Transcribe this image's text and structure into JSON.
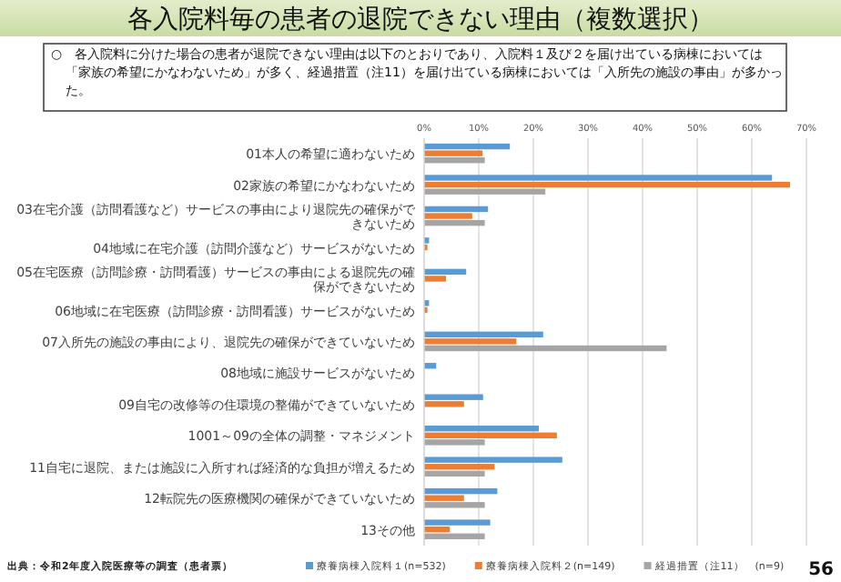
{
  "chart_data": {
    "type": "bar",
    "orientation": "horizontal",
    "title": "各入院料毎の患者の退院できない理由（複数選択）",
    "subtitle": "○　各入院料に分けた場合の患者が退院できない理由は以下のとおりであり、入院料１及び２を届け出ている病棟においては「家族の希望にかなわないため」が多く、経過措置（注11）を届け出ている病棟においては「入所先の施設の事由」が多かった。",
    "categories": [
      "01本人の希望に適わないため",
      "02家族の希望にかなわないため",
      "03在宅介護（訪問看護など）サービスの事由により退院先の確保ができないため",
      "04地域に在宅介護（訪問介護など）サービスがないため",
      "05在宅医療（訪問診療・訪問看護）サービスの事由による退院先の確保ができないため",
      "06地域に在宅医療（訪問診療・訪問看護）サービスがないため",
      "07入所先の施設の事由により、退院先の確保ができていないため",
      "08地域に施設サービスがないため",
      "09自宅の改修等の住環境の整備ができていないため",
      "1001～09の全体の調整・マネジメント",
      "11自宅に退院、または施設に入所すれば経済的な負担が増えるため",
      "12転院先の医療機関の確保ができていないため",
      "13その他"
    ],
    "series": [
      {
        "name": "療養病棟入院料１(n=532)",
        "color": "#5b9bd5",
        "values": [
          15.7,
          63.7,
          11.7,
          0.9,
          7.7,
          0.9,
          21.8,
          2.2,
          10.8,
          21.0,
          25.3,
          13.4,
          12.1
        ]
      },
      {
        "name": "療養病棟入院料２(n=149)",
        "color": "#ed7d31",
        "values": [
          10.7,
          67.0,
          8.8,
          0.6,
          4.0,
          0.6,
          16.9,
          0,
          7.3,
          24.3,
          12.9,
          7.3,
          4.7
        ]
      },
      {
        "name": "経過措置（注11）　(n=9)",
        "color": "#a5a5a5",
        "values": [
          11.1,
          22.2,
          11.1,
          0,
          0,
          0,
          44.4,
          0,
          0,
          11.1,
          11.1,
          11.1,
          11.1
        ]
      }
    ],
    "xlim": [
      0,
      70
    ],
    "xticks": [
      {
        "value": 0,
        "label": "0%"
      },
      {
        "value": 10,
        "label": "10%"
      },
      {
        "value": 20,
        "label": "20%"
      },
      {
        "value": 30,
        "label": "30%"
      },
      {
        "value": 40,
        "label": "40%"
      },
      {
        "value": 50,
        "label": "50%"
      },
      {
        "value": 60,
        "label": "60%"
      },
      {
        "value": 70,
        "label": "70%"
      }
    ],
    "grid": "x",
    "legend": "bottom",
    "annotations": [
      "出典：令和2年度入院医療等の調査（患者票）",
      "56"
    ]
  }
}
